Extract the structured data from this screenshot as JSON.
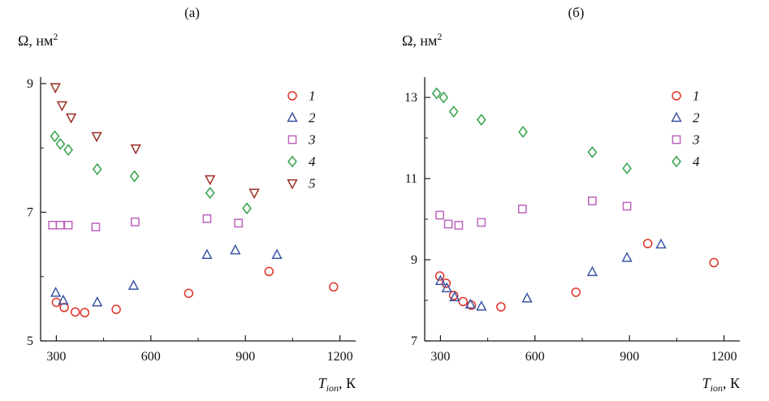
{
  "figure": {
    "panels": [
      {
        "label": "(а)"
      },
      {
        "label": "(б)"
      }
    ]
  },
  "chart_data": [
    {
      "type": "scatter",
      "panel_label": "(а)",
      "ylabel": "Ω, нм²",
      "ylabel_parts": {
        "base": "Ω, нм",
        "sup": "2"
      },
      "xlabel": "Tion, К",
      "xlabel_parts": {
        "main": "T",
        "sub": "ion",
        "rest": ", К"
      },
      "xlim": [
        250,
        1250
      ],
      "ylim": [
        5,
        9.1
      ],
      "xticks": [
        300,
        600,
        900,
        1200
      ],
      "xminor": [
        450,
        750,
        1050
      ],
      "yticks": [
        5,
        7,
        9
      ],
      "yminor": [
        6,
        8
      ],
      "grid": false,
      "legend_position": "top-right",
      "series": [
        {
          "name": "1",
          "marker": "circle",
          "color": "#e03228",
          "points": [
            [
              300,
              5.6
            ],
            [
              325,
              5.52
            ],
            [
              360,
              5.45
            ],
            [
              390,
              5.44
            ],
            [
              490,
              5.49
            ],
            [
              720,
              5.74
            ],
            [
              975,
              6.08
            ],
            [
              1180,
              5.84
            ]
          ]
        },
        {
          "name": "2",
          "marker": "triangle-up",
          "color": "#3c55a4",
          "points": [
            [
              298,
              5.75
            ],
            [
              322,
              5.63
            ],
            [
              430,
              5.6
            ],
            [
              545,
              5.86
            ],
            [
              778,
              6.34
            ],
            [
              868,
              6.41
            ],
            [
              1000,
              6.34
            ]
          ]
        },
        {
          "name": "3",
          "marker": "square",
          "color": "#bc64bc",
          "points": [
            [
              288,
              6.8
            ],
            [
              312,
              6.8
            ],
            [
              338,
              6.8
            ],
            [
              425,
              6.77
            ],
            [
              550,
              6.85
            ],
            [
              778,
              6.9
            ],
            [
              878,
              6.83
            ]
          ]
        },
        {
          "name": "4",
          "marker": "diamond",
          "color": "#33a04a",
          "points": [
            [
              295,
              8.18
            ],
            [
              313,
              8.06
            ],
            [
              338,
              7.97
            ],
            [
              430,
              7.67
            ],
            [
              548,
              7.56
            ],
            [
              788,
              7.3
            ],
            [
              905,
              7.06
            ]
          ]
        },
        {
          "name": "5",
          "marker": "triangle-down",
          "color": "#992d24",
          "points": [
            [
              297,
              8.94
            ],
            [
              318,
              8.66
            ],
            [
              347,
              8.47
            ],
            [
              428,
              8.18
            ],
            [
              552,
              7.99
            ],
            [
              788,
              7.51
            ],
            [
              928,
              7.3
            ]
          ]
        }
      ]
    },
    {
      "type": "scatter",
      "panel_label": "(б)",
      "ylabel": "Ω, нм²",
      "ylabel_parts": {
        "base": "Ω, нм",
        "sup": "2"
      },
      "xlabel": "Tion, К",
      "xlabel_parts": {
        "main": "T",
        "sub": "ion",
        "rest": ", К"
      },
      "xlim": [
        250,
        1250
      ],
      "ylim": [
        7,
        13.5
      ],
      "xticks": [
        300,
        600,
        900,
        1200
      ],
      "xminor": [
        450,
        750,
        1050
      ],
      "yticks": [
        7,
        9,
        11,
        13
      ],
      "yminor": [
        8,
        10,
        12
      ],
      "grid": false,
      "legend_position": "top-right",
      "series": [
        {
          "name": "1",
          "marker": "circle",
          "color": "#e03228",
          "points": [
            [
              298,
              8.6
            ],
            [
              318,
              8.42
            ],
            [
              342,
              8.12
            ],
            [
              372,
              7.97
            ],
            [
              398,
              7.88
            ],
            [
              492,
              7.84
            ],
            [
              730,
              8.2
            ],
            [
              958,
              9.4
            ],
            [
              1168,
              8.93
            ]
          ]
        },
        {
          "name": "2",
          "marker": "triangle-up",
          "color": "#3c55a4",
          "points": [
            [
              300,
              8.48
            ],
            [
              320,
              8.3
            ],
            [
              345,
              8.08
            ],
            [
              395,
              7.9
            ],
            [
              430,
              7.85
            ],
            [
              575,
              8.05
            ],
            [
              782,
              8.7
            ],
            [
              892,
              9.05
            ],
            [
              1000,
              9.38
            ]
          ]
        },
        {
          "name": "3",
          "marker": "square",
          "color": "#bc64bc",
          "points": [
            [
              298,
              10.1
            ],
            [
              325,
              9.88
            ],
            [
              358,
              9.85
            ],
            [
              430,
              9.92
            ],
            [
              560,
              10.25
            ],
            [
              782,
              10.45
            ],
            [
              892,
              10.32
            ]
          ]
        },
        {
          "name": "4",
          "marker": "diamond",
          "color": "#33a04a",
          "points": [
            [
              288,
              13.1
            ],
            [
              310,
              13
            ],
            [
              342,
              12.65
            ],
            [
              430,
              12.45
            ],
            [
              562,
              12.15
            ],
            [
              782,
              11.65
            ],
            [
              892,
              11.25
            ]
          ]
        }
      ]
    }
  ]
}
